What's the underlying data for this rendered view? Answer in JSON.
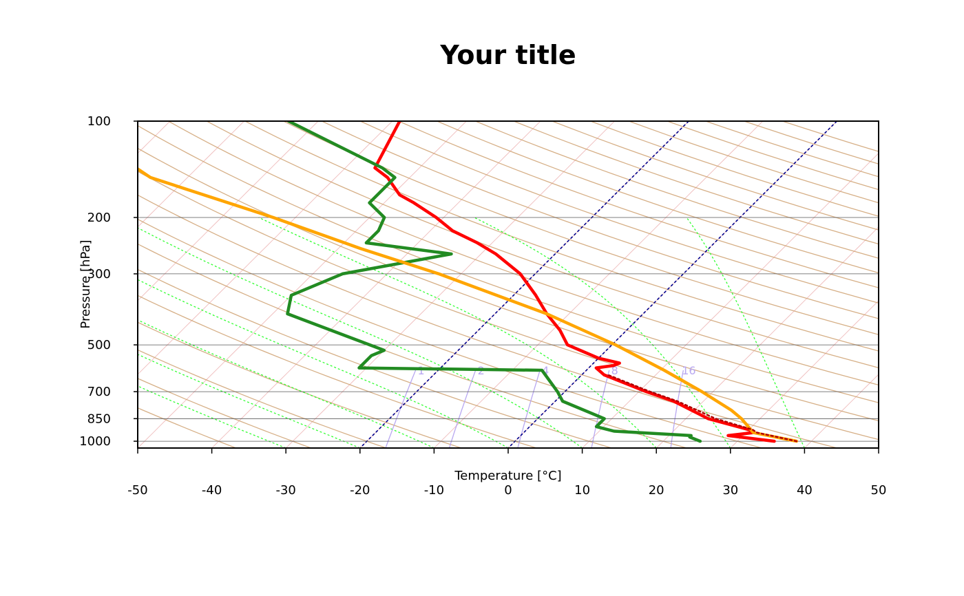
{
  "chart_data": {
    "type": "line",
    "chart_kind": "skew-T log-P diagram",
    "title": "Your title",
    "xlabel": "Temperature [°C]",
    "ylabel": "Pressure [hPa]",
    "xlim": [
      -50,
      50
    ],
    "ylim": [
      1050,
      100
    ],
    "y_scale": "log",
    "x_ticks": [
      -50,
      -40,
      -30,
      -20,
      -10,
      0,
      10,
      20,
      30,
      40,
      50
    ],
    "y_ticks": [
      100,
      200,
      300,
      500,
      700,
      850,
      1000
    ],
    "mixing_ratio_labels": [
      "1",
      "2",
      "4",
      "8",
      "16"
    ],
    "colors": {
      "temperature": "#ff0000",
      "dewpoint": "#228b22",
      "parcel": "#ffa500",
      "dry_adiabats": "#d2a679",
      "moist_adiabats": "#33ff33",
      "isotherms": "#f0c0c0",
      "mixing_ratio": "#b8a7f0",
      "isotherm_highlight": "#00008b",
      "virtual_temperature": "#b00000"
    },
    "series": [
      {
        "values": [
          {
            "p": 1000,
            "t": 35
          },
          {
            "p": 960,
            "t": 28
          },
          {
            "p": 940,
            "t": 31
          },
          {
            "p": 920,
            "t": 30
          },
          {
            "p": 850,
            "t": 23
          },
          {
            "p": 750,
            "t": 16
          },
          {
            "p": 700,
            "t": 11
          },
          {
            "p": 620,
            "t": 3
          },
          {
            "p": 590,
            "t": 1
          },
          {
            "p": 580,
            "t": 3
          },
          {
            "p": 570,
            "t": 3.5
          },
          {
            "p": 550,
            "t": 0
          },
          {
            "p": 500,
            "t": -6
          },
          {
            "p": 450,
            "t": -9
          },
          {
            "p": 400,
            "t": -13
          },
          {
            "p": 350,
            "t": -17
          },
          {
            "p": 300,
            "t": -22
          },
          {
            "p": 260,
            "t": -28
          },
          {
            "p": 240,
            "t": -32
          },
          {
            "p": 220,
            "t": -37
          },
          {
            "p": 200,
            "t": -41
          },
          {
            "p": 180,
            "t": -46
          },
          {
            "p": 170,
            "t": -49
          },
          {
            "p": 150,
            "t": -53
          },
          {
            "p": 140,
            "t": -56
          },
          {
            "p": 100,
            "t": -59
          }
        ]
      },
      {
        "values": [
          {
            "p": 1000,
            "t": 25
          },
          {
            "p": 970,
            "t": 23
          },
          {
            "p": 960,
            "t": 23
          },
          {
            "p": 930,
            "t": 12
          },
          {
            "p": 900,
            "t": 9
          },
          {
            "p": 850,
            "t": 9
          },
          {
            "p": 750,
            "t": 1
          },
          {
            "p": 700,
            "t": -1
          },
          {
            "p": 600,
            "t": -6
          },
          {
            "p": 590,
            "t": -31
          },
          {
            "p": 540,
            "t": -31
          },
          {
            "p": 520,
            "t": -30
          },
          {
            "p": 400,
            "t": -48
          },
          {
            "p": 350,
            "t": -50
          },
          {
            "p": 300,
            "t": -46
          },
          {
            "p": 260,
            "t": -34
          },
          {
            "p": 240,
            "t": -47
          },
          {
            "p": 220,
            "t": -47
          },
          {
            "p": 200,
            "t": -48
          },
          {
            "p": 180,
            "t": -52
          },
          {
            "p": 150,
            "t": -52
          },
          {
            "p": 140,
            "t": -55
          },
          {
            "p": 100,
            "t": -74
          }
        ]
      },
      {
        "values": [
          {
            "p": 1000,
            "t": 38
          },
          {
            "p": 940,
            "t": 31
          },
          {
            "p": 900,
            "t": 29.5
          },
          {
            "p": 850,
            "t": 27.5
          },
          {
            "p": 800,
            "t": 25
          },
          {
            "p": 700,
            "t": 18.5
          },
          {
            "p": 600,
            "t": 10.5
          },
          {
            "p": 500,
            "t": 0.5
          },
          {
            "p": 400,
            "t": -13
          },
          {
            "p": 300,
            "t": -33
          },
          {
            "p": 250,
            "t": -47
          },
          {
            "p": 200,
            "t": -63
          },
          {
            "p": 150,
            "t": -85
          },
          {
            "p": 100,
            "t": -104
          }
        ]
      },
      {
        "values": [
          {
            "p": 1000,
            "t": 38
          },
          {
            "p": 940,
            "t": 31.5
          },
          {
            "p": 920,
            "t": 30.5
          },
          {
            "p": 850,
            "t": 24
          },
          {
            "p": 750,
            "t": 16.5
          },
          {
            "p": 700,
            "t": 11.5
          },
          {
            "p": 620,
            "t": 3.5
          }
        ]
      }
    ]
  }
}
